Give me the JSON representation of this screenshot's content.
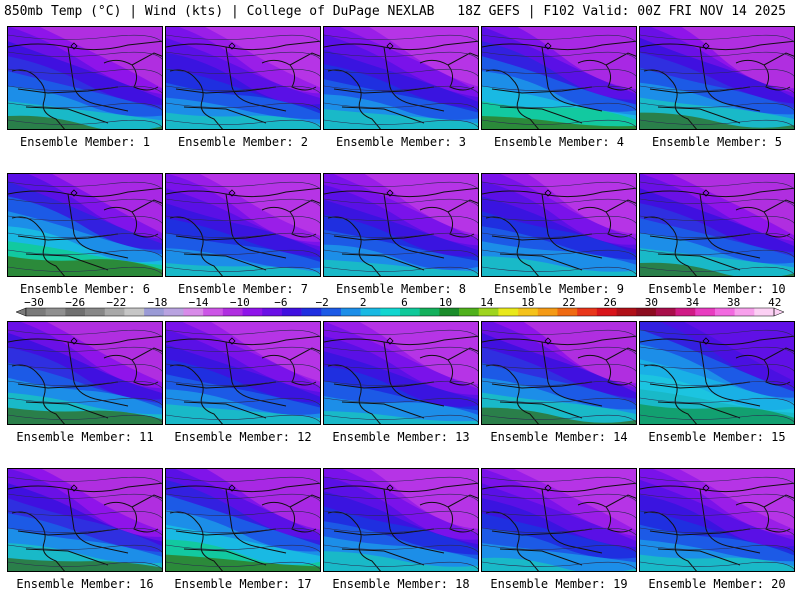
{
  "header": {
    "left": "850mb Temp (°C) | Wind (kts) | College of DuPage NEXLAB",
    "right": "18Z GEFS | F102 Valid: 00Z FRI NOV 14 2025"
  },
  "members": [
    {
      "label": "Ensemble Member: 1",
      "style": 0
    },
    {
      "label": "Ensemble Member: 2",
      "style": 1
    },
    {
      "label": "Ensemble Member: 3",
      "style": 1
    },
    {
      "label": "Ensemble Member: 4",
      "style": 2
    },
    {
      "label": "Ensemble Member: 5",
      "style": 0
    },
    {
      "label": "Ensemble Member: 6",
      "style": 2
    },
    {
      "label": "Ensemble Member: 7",
      "style": 1
    },
    {
      "label": "Ensemble Member: 8",
      "style": 1
    },
    {
      "label": "Ensemble Member: 9",
      "style": 1
    },
    {
      "label": "Ensemble Member: 10",
      "style": 0
    },
    {
      "label": "Ensemble Member: 11",
      "style": 0
    },
    {
      "label": "Ensemble Member: 12",
      "style": 1
    },
    {
      "label": "Ensemble Member: 13",
      "style": 1
    },
    {
      "label": "Ensemble Member: 14",
      "style": 0
    },
    {
      "label": "Ensemble Member: 15",
      "style": 3
    },
    {
      "label": "Ensemble Member: 16",
      "style": 0
    },
    {
      "label": "Ensemble Member: 17",
      "style": 2
    },
    {
      "label": "Ensemble Member: 18",
      "style": 1
    },
    {
      "label": "Ensemble Member: 19",
      "style": 1
    },
    {
      "label": "Ensemble Member: 20",
      "style": 1
    }
  ],
  "colorbar": {
    "labels": [
      "−30",
      "−26",
      "−22",
      "−18",
      "−14",
      "−10",
      "−6",
      "−2",
      "2",
      "6",
      "10",
      "14",
      "18",
      "22",
      "26",
      "30",
      "34",
      "38",
      "42"
    ],
    "colors": [
      "#7a7a7a",
      "#8f8f8f",
      "#707070",
      "#888888",
      "#a9a9a9",
      "#c6c6c6",
      "#9b9bd6",
      "#b9a3e0",
      "#d88be8",
      "#cc55e6",
      "#b02ee0",
      "#8f14ea",
      "#6a10e6",
      "#4010e0",
      "#1f2fe0",
      "#1c5ae6",
      "#1c8ee8",
      "#19b9e3",
      "#12d6d0",
      "#10c99a",
      "#14b05c",
      "#1a8c2a",
      "#4fb01c",
      "#9ed41e",
      "#e8e81a",
      "#f4c21a",
      "#f49a16",
      "#ef6a12",
      "#e8361a",
      "#d8141a",
      "#b01018",
      "#8c0c20",
      "#a80e4a",
      "#d01a86",
      "#e83cc0",
      "#f26ae0",
      "#f8a0ec",
      "#fcd0f4"
    ]
  }
}
